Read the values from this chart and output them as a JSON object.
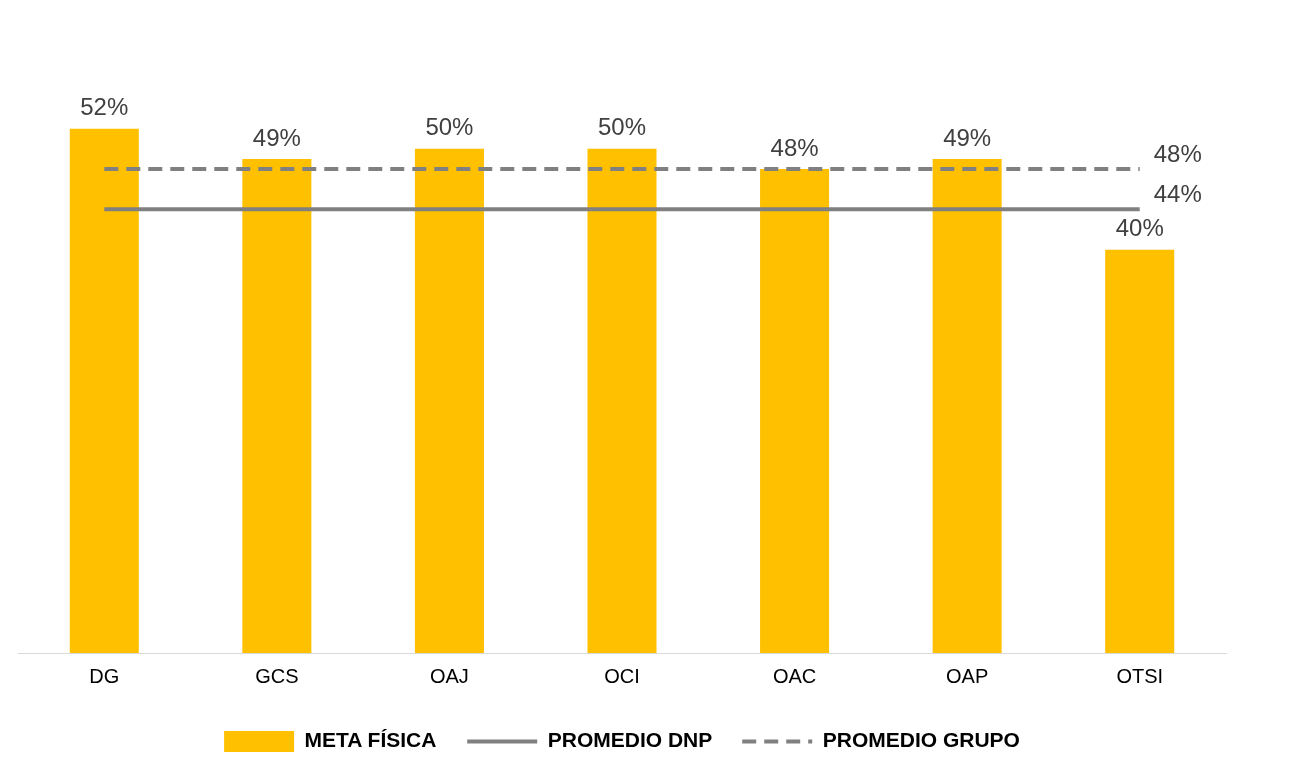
{
  "chart_data": {
    "type": "bar",
    "categories": [
      "DG",
      "GCS",
      "OAJ",
      "OCI",
      "OAC",
      "OAP",
      "OTSI"
    ],
    "series": [
      {
        "name": "META FÍSICA",
        "color": "#ffc000",
        "values": [
          52,
          49,
          50,
          50,
          48,
          49,
          40
        ],
        "value_labels": [
          "52%",
          "49%",
          "50%",
          "50%",
          "48%",
          "49%",
          "40%"
        ]
      },
      {
        "name": "PROMEDIO DNP",
        "type": "line",
        "color": "#808080",
        "line_style": "solid",
        "values": [
          44,
          44,
          44,
          44,
          44,
          44,
          44
        ],
        "value_labels": [
          null,
          null,
          null,
          null,
          null,
          null,
          "44%"
        ]
      },
      {
        "name": "PROMEDIO GRUPO",
        "type": "line",
        "color": "#808080",
        "line_style": "dashed",
        "values": [
          48,
          48,
          48,
          48,
          48,
          48,
          48
        ],
        "value_labels": [
          null,
          null,
          null,
          null,
          null,
          null,
          "48%"
        ]
      }
    ],
    "legend": "bottom",
    "grid": false,
    "marker": "none"
  }
}
